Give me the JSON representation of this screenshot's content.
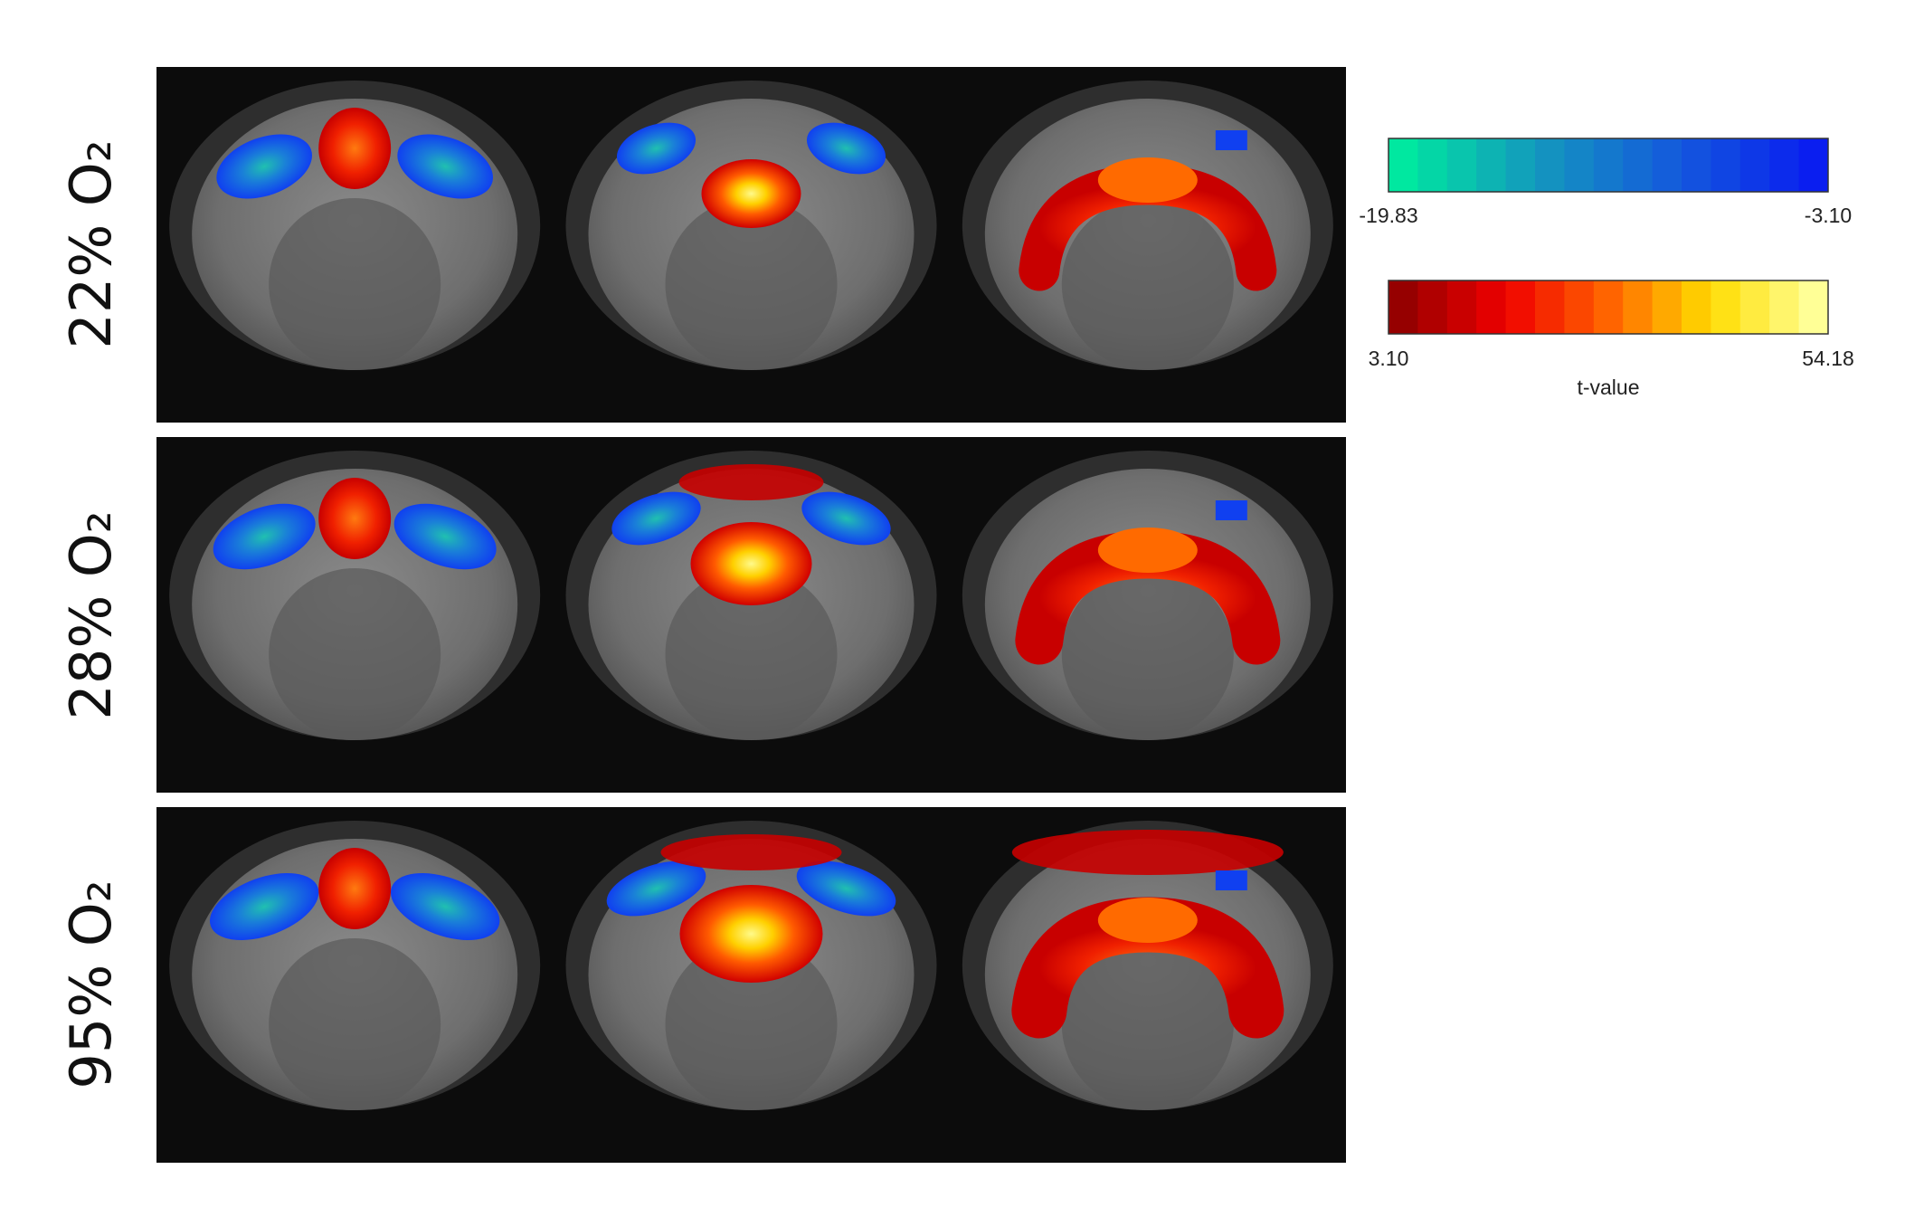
{
  "rows": [
    {
      "label": "22% O₂"
    },
    {
      "label": "28% O₂"
    },
    {
      "label": "95% O₂"
    }
  ],
  "colorbars": [
    {
      "min_label": "-19.83",
      "max_label": "-3.10"
    },
    {
      "min_label": "3.10",
      "max_label": "54.18"
    }
  ],
  "colorbar_title": "t-value"
}
